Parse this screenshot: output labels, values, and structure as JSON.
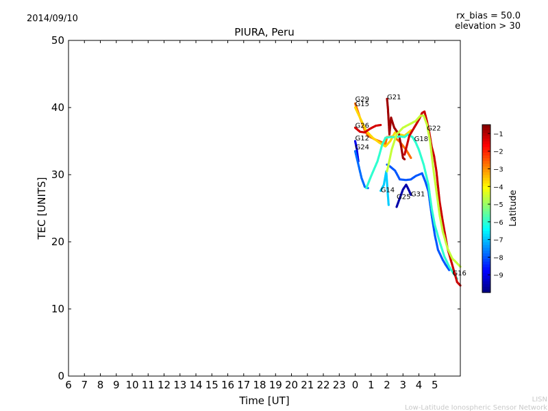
{
  "header": {
    "date": "2014/09/10",
    "rx_bias": "rx_bias = 50.0",
    "elevation": "elevation > 30"
  },
  "footer": {
    "line1": "LISN",
    "line2": "Low-Latitude Ionospheric Sensor Network"
  },
  "chart_data": {
    "type": "scatter",
    "title": "PIURA, Peru",
    "xlabel": "Time [UT]",
    "ylabel": "TEC [UNITS]",
    "x_tick_labels": [
      "6",
      "7",
      "8",
      "9",
      "10",
      "11",
      "12",
      "13",
      "14",
      "15",
      "16",
      "17",
      "18",
      "19",
      "20",
      "21",
      "22",
      "23",
      "0",
      "1",
      "2",
      "3",
      "4",
      "5"
    ],
    "x_range_hours": [
      6,
      30.6
    ],
    "ylim": [
      0,
      50
    ],
    "y_ticks": [
      0,
      10,
      20,
      30,
      40,
      50
    ],
    "colorbar": {
      "label": "Latitude",
      "range": [
        -10,
        -0.5
      ],
      "ticks": [
        -1,
        -2,
        -3,
        -4,
        -5,
        -6,
        -7,
        -8,
        -9
      ],
      "colormap": "jet"
    },
    "series": [
      {
        "name": "G29",
        "lat": -2.7,
        "points": [
          [
            24.0,
            40.6
          ],
          [
            24.3,
            38.5
          ],
          [
            24.6,
            36.6
          ],
          [
            24.8,
            35.8
          ],
          [
            25.2,
            35.3
          ],
          [
            25.6,
            34.9
          ],
          [
            25.9,
            34.6
          ],
          [
            26.0,
            35.6
          ],
          [
            26.4,
            35.7
          ],
          [
            26.8,
            34.9
          ],
          [
            27.2,
            33.7
          ],
          [
            27.5,
            32.5
          ]
        ]
      },
      {
        "name": "G15",
        "lat": -3.7,
        "points": [
          [
            24.0,
            40.0
          ],
          [
            24.3,
            38.5
          ],
          [
            24.7,
            36.5
          ],
          [
            25.1,
            35.5
          ],
          [
            25.5,
            34.8
          ],
          [
            25.9,
            34.2
          ],
          [
            26.2,
            35.0
          ],
          [
            26.5,
            36.3
          ],
          [
            26.8,
            36.0
          ],
          [
            27.1,
            35.8
          ],
          [
            27.5,
            36.6
          ]
        ]
      },
      {
        "name": "G26",
        "lat": -1.3,
        "points": [
          [
            24.0,
            37.0
          ],
          [
            24.3,
            36.4
          ],
          [
            24.6,
            36.3
          ],
          [
            24.9,
            36.8
          ],
          [
            25.3,
            37.3
          ],
          [
            25.6,
            37.4
          ]
        ]
      },
      {
        "name": "G12",
        "lat": -9.0,
        "points": [
          [
            24.0,
            35.0
          ],
          [
            24.1,
            33.8
          ],
          [
            24.2,
            32.0
          ]
        ]
      },
      {
        "name": "G24",
        "lat": -7.8,
        "points": [
          [
            24.0,
            33.5
          ],
          [
            24.2,
            31.5
          ],
          [
            24.4,
            29.5
          ],
          [
            24.6,
            28.2
          ],
          [
            24.8,
            28.0
          ]
        ]
      },
      {
        "name": "G21",
        "lat": -0.8,
        "points": [
          [
            26.0,
            41.3
          ],
          [
            26.05,
            40.0
          ],
          [
            26.1,
            38.0
          ],
          [
            26.15,
            36.0
          ],
          [
            26.25,
            38.5
          ],
          [
            26.45,
            37.0
          ],
          [
            26.75,
            36.0
          ],
          [
            26.9,
            34.0
          ],
          [
            27.0,
            32.5
          ],
          [
            27.1,
            32.3
          ]
        ]
      },
      {
        "name": "G14",
        "lat": -6.9,
        "points": [
          [
            25.6,
            27.6
          ],
          [
            25.8,
            28.5
          ],
          [
            25.95,
            30.5
          ],
          [
            26.05,
            27.0
          ],
          [
            26.1,
            25.5
          ]
        ]
      },
      {
        "name": "G25",
        "lat": -8.0,
        "points": [
          [
            26.0,
            31.5
          ],
          [
            26.2,
            31.2
          ],
          [
            26.5,
            30.6
          ],
          [
            26.8,
            29.3
          ],
          [
            27.2,
            29.2
          ],
          [
            27.5,
            29.3
          ],
          [
            27.8,
            29.8
          ],
          [
            28.2,
            30.2
          ],
          [
            28.4,
            29.0
          ],
          [
            28.6,
            27.5
          ],
          [
            28.8,
            24.0
          ],
          [
            29.0,
            21.0
          ],
          [
            29.2,
            18.8
          ],
          [
            29.5,
            17.3
          ],
          [
            29.7,
            16.5
          ],
          [
            29.9,
            15.8
          ]
        ]
      },
      {
        "name": "G31",
        "lat": -9.6,
        "points": [
          [
            26.6,
            25.2
          ],
          [
            26.8,
            26.5
          ],
          [
            27.0,
            27.8
          ],
          [
            27.2,
            28.5
          ],
          [
            27.35,
            27.8
          ],
          [
            27.5,
            27.0
          ]
        ]
      },
      {
        "name": "G18",
        "lat": -6.0,
        "points": [
          [
            24.7,
            28.0
          ],
          [
            25.0,
            29.8
          ],
          [
            25.4,
            32.0
          ],
          [
            25.7,
            34.5
          ],
          [
            25.9,
            35.5
          ],
          [
            26.2,
            35.6
          ],
          [
            26.5,
            35.6
          ],
          [
            26.8,
            35.7
          ],
          [
            27.1,
            35.6
          ],
          [
            27.3,
            36.0
          ],
          [
            27.6,
            35.6
          ],
          [
            27.8,
            34.8
          ],
          [
            28.0,
            33.7
          ],
          [
            28.3,
            31.5
          ],
          [
            28.6,
            28.5
          ],
          [
            28.8,
            25.0
          ],
          [
            29.0,
            22.5
          ],
          [
            29.3,
            20.0
          ],
          [
            29.6,
            17.8
          ],
          [
            29.9,
            16.3
          ],
          [
            30.4,
            14.5
          ]
        ]
      },
      {
        "name": "G22",
        "lat": -1.2,
        "points": [
          [
            27.1,
            33.0
          ],
          [
            27.4,
            35.8
          ],
          [
            27.7,
            37.0
          ],
          [
            28.0,
            38.2
          ],
          [
            28.2,
            39.2
          ],
          [
            28.35,
            39.4
          ],
          [
            28.5,
            38.0
          ],
          [
            28.65,
            36.3
          ],
          [
            28.8,
            34.2
          ],
          [
            28.95,
            32.8
          ],
          [
            29.1,
            30.5
          ],
          [
            29.3,
            26.0
          ],
          [
            29.5,
            23.0
          ],
          [
            29.8,
            19.0
          ],
          [
            30.1,
            16.5
          ],
          [
            30.4,
            14.0
          ],
          [
            30.6,
            13.5
          ]
        ]
      },
      {
        "name": "G16",
        "lat": -4.6,
        "points": [
          [
            26.0,
            30.5
          ],
          [
            26.3,
            33.8
          ],
          [
            26.6,
            36.0
          ],
          [
            27.0,
            37.0
          ],
          [
            27.4,
            37.5
          ],
          [
            27.8,
            38.0
          ],
          [
            28.1,
            38.8
          ],
          [
            28.3,
            38.8
          ],
          [
            28.5,
            37.5
          ],
          [
            28.7,
            35.0
          ],
          [
            28.9,
            31.0
          ],
          [
            29.1,
            27.5
          ],
          [
            29.3,
            24.0
          ],
          [
            29.5,
            21.5
          ],
          [
            29.8,
            19.0
          ],
          [
            30.1,
            17.5
          ],
          [
            30.4,
            16.8
          ],
          [
            30.6,
            16.3
          ]
        ]
      }
    ],
    "labels": [
      {
        "text": "G29",
        "x": 24.0,
        "y": 40.9
      },
      {
        "text": "G15",
        "x": 24.0,
        "y": 40.2
      },
      {
        "text": "G21",
        "x": 26.0,
        "y": 41.2
      },
      {
        "text": "G26",
        "x": 24.0,
        "y": 37.0
      },
      {
        "text": "G22",
        "x": 28.5,
        "y": 36.6
      },
      {
        "text": "G12",
        "x": 24.0,
        "y": 35.1
      },
      {
        "text": "G18",
        "x": 27.7,
        "y": 35.0
      },
      {
        "text": "G24",
        "x": 24.0,
        "y": 33.8
      },
      {
        "text": "G14",
        "x": 25.6,
        "y": 27.4
      },
      {
        "text": "G31",
        "x": 27.5,
        "y": 26.8
      },
      {
        "text": "G25",
        "x": 26.6,
        "y": 26.4
      },
      {
        "text": "G16",
        "x": 30.1,
        "y": 15.0
      }
    ]
  }
}
